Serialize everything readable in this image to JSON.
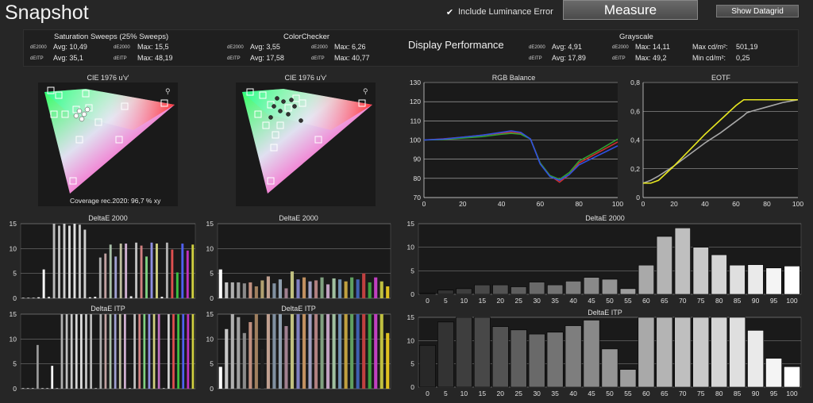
{
  "header": {
    "title": "Snapshot",
    "include_luminance_error": "Include Luminance Error",
    "measure_label": "Measure",
    "datagrid_label": "Show Datagrid"
  },
  "stats": {
    "saturation": {
      "title": "Saturation Sweeps (25% Sweeps)",
      "de2000_label": "dE2000",
      "de2000_avg": "Avg: 10,49",
      "de2000_max_label": "dE2000",
      "de2000_max": "Max: 15,5",
      "deitp_label": "dEITP",
      "deitp_avg": "Avg: 35,1",
      "deitp_max_label": "dEITP",
      "deitp_max": "Max: 48,19"
    },
    "colorchecker": {
      "title": "ColorChecker",
      "de2000_label": "dE2000",
      "de2000_avg": "Avg: 3,55",
      "de2000_max_label": "dE2000",
      "de2000_max": "Max: 6,26",
      "deitp_label": "dEITP",
      "deitp_avg": "Avg: 17,58",
      "deitp_max_label": "dEITP",
      "deitp_max": "Max: 40,77"
    },
    "display_performance": "Display Performance",
    "grayscale": {
      "title": "Grayscale",
      "de2000_label": "dE2000",
      "de2000_avg": "Avg: 4,91",
      "de2000_max_label": "dE2000",
      "de2000_max": "Max: 14,11",
      "deitp_label": "dEITP",
      "deitp_avg": "Avg: 17,89",
      "deitp_max_label": "dEITP",
      "deitp_max": "Max: 49,2",
      "max_cd_label": "Max cd/m²:",
      "max_cd": "501,19",
      "min_cd_label": "Min cd/m²:",
      "min_cd": "0,25"
    }
  },
  "cie1": {
    "title": "CIE 1976 u'v'",
    "coverage": "Coverage rec.2020:  96,7 % xy"
  },
  "cie2": {
    "title": "CIE 1976 u'v'"
  },
  "colors": {
    "background": "#262626",
    "panel": "#1a1a1a",
    "rgb_red": "#d03030",
    "rgb_green": "#30a030",
    "rgb_blue": "#3050e0",
    "eotf_target": "#a8a8a8",
    "eotf_measured": "#e8e820"
  },
  "chart_data": [
    {
      "type": "line",
      "title": "RGB Balance",
      "x": [
        0,
        10,
        20,
        30,
        40,
        45,
        50,
        55,
        60,
        65,
        70,
        75,
        80,
        90,
        100
      ],
      "series": [
        {
          "values": [
            100,
            100.6,
            101.5,
            102.5,
            103.6,
            104,
            103.4,
            100.5,
            88,
            81.5,
            78,
            82,
            88,
            93.5,
            99
          ]
        },
        {
          "values": [
            100,
            100.3,
            101,
            101.8,
            103,
            103.5,
            103,
            100.5,
            88,
            81.5,
            79.5,
            83,
            89,
            94.5,
            100.5
          ]
        },
        {
          "values": [
            100,
            100.5,
            101.5,
            102.5,
            104,
            104.8,
            104,
            100.5,
            87.5,
            81,
            79,
            82,
            87,
            92,
            97
          ]
        }
      ],
      "xlim": [
        0,
        100
      ],
      "ylim": [
        70,
        130
      ],
      "xticks": [
        0,
        20,
        40,
        60,
        80,
        100
      ],
      "yticks": [
        70,
        80,
        90,
        100,
        110,
        120,
        130
      ]
    },
    {
      "type": "line",
      "title": "EOTF",
      "x": [
        0,
        5,
        10,
        20,
        30,
        40,
        50,
        60,
        65,
        67,
        70,
        80,
        90,
        100
      ],
      "series": [
        {
          "values": [
            0.1,
            0.12,
            0.15,
            0.22,
            0.3,
            0.38,
            0.45,
            0.53,
            0.57,
            0.59,
            0.6,
            0.63,
            0.66,
            0.68
          ]
        },
        {
          "values": [
            0.1,
            0.1,
            0.12,
            0.22,
            0.33,
            0.44,
            0.54,
            0.64,
            0.68,
            0.68,
            0.68,
            0.68,
            0.68,
            0.68
          ]
        }
      ],
      "xlim": [
        0,
        100
      ],
      "ylim": [
        0,
        0.8
      ],
      "xticks": [
        0,
        20,
        40,
        60,
        80,
        100
      ],
      "yticks": [
        0,
        0.2,
        0.4,
        0.6,
        0.8
      ]
    },
    {
      "type": "bar",
      "title": "DeltaE 2000",
      "categories": [
        "0",
        "5",
        "10",
        "15",
        "20",
        "25",
        "30",
        "35",
        "40",
        "45",
        "50",
        "55",
        "60",
        "65",
        "70",
        "75",
        "80",
        "85",
        "90",
        "95",
        "100"
      ],
      "values": [
        0.2,
        0.9,
        1.2,
        2.0,
        2.0,
        1.6,
        2.6,
        2.0,
        2.8,
        3.6,
        3.2,
        1.2,
        6.2,
        12.3,
        14.1,
        10.0,
        8.4,
        6.2,
        6.3,
        5.6,
        6.0
      ],
      "ylim": [
        0,
        15
      ],
      "yticks": [
        0,
        5,
        10,
        15
      ]
    },
    {
      "type": "bar",
      "title": "DeltaE ITP",
      "categories": [
        "0",
        "5",
        "10",
        "15",
        "20",
        "25",
        "30",
        "35",
        "40",
        "45",
        "50",
        "55",
        "60",
        "65",
        "70",
        "75",
        "80",
        "85",
        "90",
        "95",
        "100"
      ],
      "values": [
        9.0,
        14.0,
        15,
        15,
        13.0,
        12.3,
        11.4,
        11.8,
        13.2,
        14.4,
        8.2,
        3.8,
        15,
        15,
        15,
        15,
        15,
        15,
        12.2,
        6.2,
        4.4
      ],
      "ylim": [
        0,
        15
      ],
      "yticks": [
        0,
        5,
        10,
        15
      ]
    },
    {
      "type": "bar",
      "title": "DeltaE 2000",
      "values": [
        0.1,
        0.1,
        0.1,
        0.2,
        5.8,
        0.3,
        15,
        14.6,
        15,
        14.6,
        15,
        14.8,
        13.8,
        0.2,
        0.3,
        8.2,
        9.0,
        10.8,
        8.4,
        11.0,
        11.0,
        0.4,
        11.2,
        10.6,
        8.4,
        11.2,
        11.0,
        0.3,
        11.2,
        9.8,
        5.2,
        11.0,
        9.6,
        10.8
      ],
      "colors": [
        "#ffffff",
        "#ffffff",
        "#ffffff",
        "#ffffff",
        "#ffffff",
        "#dddddd",
        "#bbbbbb",
        "#c0c0c0",
        "#cfcfcf",
        "#dcdcdc",
        "#e0e0e0",
        "#c8c8c8",
        "#d0d0d0",
        "#ffffff",
        "#ffffff",
        "#b0b0b0",
        "#c0a0a0",
        "#a8c0a8",
        "#a0a0d0",
        "#c0c0a0",
        "#d0b0d0",
        "#ffffff",
        "#c0c0c0",
        "#d08080",
        "#80d080",
        "#9090e0",
        "#d0d080",
        "#ffffff",
        "#b0b0b0",
        "#e05050",
        "#40c040",
        "#5060f0",
        "#c030c0",
        "#d0d040"
      ],
      "ylim": [
        0,
        15
      ],
      "yticks": [
        0,
        5,
        10,
        15
      ]
    },
    {
      "type": "bar",
      "title": "DeltaE ITP",
      "values": [
        0.1,
        0.1,
        0.1,
        8.8,
        0.1,
        0.1,
        4.6,
        0.1,
        15,
        15,
        15,
        15,
        15,
        15,
        15,
        0.1,
        15,
        15,
        15,
        15,
        15,
        15,
        0.1,
        15,
        15,
        15,
        15,
        15,
        15,
        0.1,
        15,
        15,
        15,
        15,
        15,
        15
      ],
      "colors": [
        "#ffffff",
        "#ffffff",
        "#ffffff",
        "#999999",
        "#ffffff",
        "#ffffff",
        "#ffffff",
        "#ffffff",
        "#b0b0b0",
        "#c0c0c0",
        "#cccccc",
        "#d8d8d8",
        "#e0e0e0",
        "#c8c8c8",
        "#b8b8b8",
        "#ffffff",
        "#b0b0b0",
        "#c0a0a0",
        "#a8c0a8",
        "#a0a0d0",
        "#c0c0a0",
        "#d0b0d0",
        "#ffffff",
        "#c0c0c0",
        "#d08080",
        "#80d080",
        "#9090e0",
        "#d0d080",
        "#c070c0",
        "#ffffff",
        "#d0d0d0",
        "#e05050",
        "#40c040",
        "#5060f0",
        "#c030c0",
        "#d0d040"
      ],
      "ylim": [
        0,
        15
      ],
      "yticks": [
        0,
        5,
        10,
        15
      ]
    },
    {
      "type": "bar",
      "title": "DeltaE 2000",
      "values": [
        5.8,
        3.2,
        3.2,
        3.2,
        3.0,
        3.2,
        2.4,
        3.6,
        4.4,
        3.0,
        3.8,
        2.0,
        5.4,
        3.8,
        4.2,
        3.4,
        3.6,
        4.2,
        2.8,
        4.0,
        3.8,
        3.4,
        4.2,
        3.8,
        5.0,
        3.2,
        4.2,
        3.4,
        2.4
      ],
      "colors": [
        "#ffffff",
        "#c8c8c8",
        "#b0b0b0",
        "#a0a0a0",
        "#8a8a8a",
        "#c09080",
        "#a08060",
        "#b0a070",
        "#c0a090",
        "#8090a0",
        "#90a0b0",
        "#a08090",
        "#c0c080",
        "#8080c0",
        "#c09060",
        "#a0a0c0",
        "#b08080",
        "#80a080",
        "#c0a0c0",
        "#a0c0a0",
        "#7090b0",
        "#c0a040",
        "#60a060",
        "#4060b0",
        "#c04040",
        "#40a040",
        "#c040c0",
        "#c0c040",
        "#e0c020"
      ],
      "ylim": [
        0,
        15
      ],
      "yticks": [
        0,
        5,
        10,
        15
      ]
    },
    {
      "type": "bar",
      "title": "DeltaE ITP",
      "values": [
        4.4,
        12.0,
        15,
        14.4,
        11.2,
        13.4,
        15,
        8.0,
        15,
        15,
        15,
        12.6,
        15,
        15,
        15,
        15,
        15,
        15,
        15,
        15,
        15,
        15,
        15,
        15,
        15,
        15,
        15,
        15,
        11.2
      ],
      "colors": [
        "#ffffff",
        "#c8c8c8",
        "#b0b0b0",
        "#a0a0a0",
        "#8a8a8a",
        "#c09080",
        "#a08060",
        "#202020",
        "#c0a090",
        "#8090a0",
        "#90a0b0",
        "#a08090",
        "#c0c080",
        "#8080c0",
        "#c09060",
        "#a0a0c0",
        "#b08080",
        "#80a080",
        "#c0a0c0",
        "#a0c0a0",
        "#7090b0",
        "#c0a040",
        "#60a060",
        "#4060b0",
        "#c04040",
        "#40a040",
        "#c040c0",
        "#c0c040",
        "#e0c020"
      ],
      "ylim": [
        0,
        15
      ],
      "yticks": [
        0,
        5,
        10,
        15
      ]
    }
  ]
}
